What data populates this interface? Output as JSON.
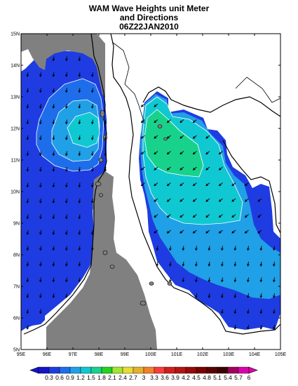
{
  "title": {
    "line1": "WAM Wave Heights unit Meter",
    "line2": "and Directions",
    "line3": "06Z22JAN2010"
  },
  "map": {
    "lon_labels": [
      "95E",
      "96E",
      "97E",
      "98E",
      "99E",
      "100E",
      "101E",
      "102E",
      "103E",
      "104E",
      "105E"
    ],
    "lat_labels": [
      "15N",
      "14N",
      "13N",
      "12N",
      "11N",
      "10N",
      "9N",
      "8N",
      "7N",
      "6N",
      "5N"
    ],
    "land_color": "#808080",
    "arrow_direction": "toward south-west"
  },
  "colorbar": {
    "labels": [
      "0.3",
      "0.6",
      "0.9",
      "1.2",
      "1.5",
      "1.8",
      "2.1",
      "2.4",
      "2.7",
      "3",
      "3.3",
      "3.6",
      "3.9",
      "4.2",
      "4.5",
      "4.8",
      "5.1",
      "5.4",
      "5.7",
      "6"
    ],
    "colors": [
      "#1414c8",
      "#1e3ce1",
      "#1e6eeb",
      "#20a0e6",
      "#10c8d2",
      "#18d28c",
      "#22d21e",
      "#a0e632",
      "#e6dc32",
      "#e6af2d",
      "#f08228",
      "#fa3c3c",
      "#d21e1e",
      "#b41414",
      "#960a0a",
      "#780000",
      "#5a0000",
      "#3c0000",
      "#a00060",
      "#dc00aa"
    ]
  }
}
